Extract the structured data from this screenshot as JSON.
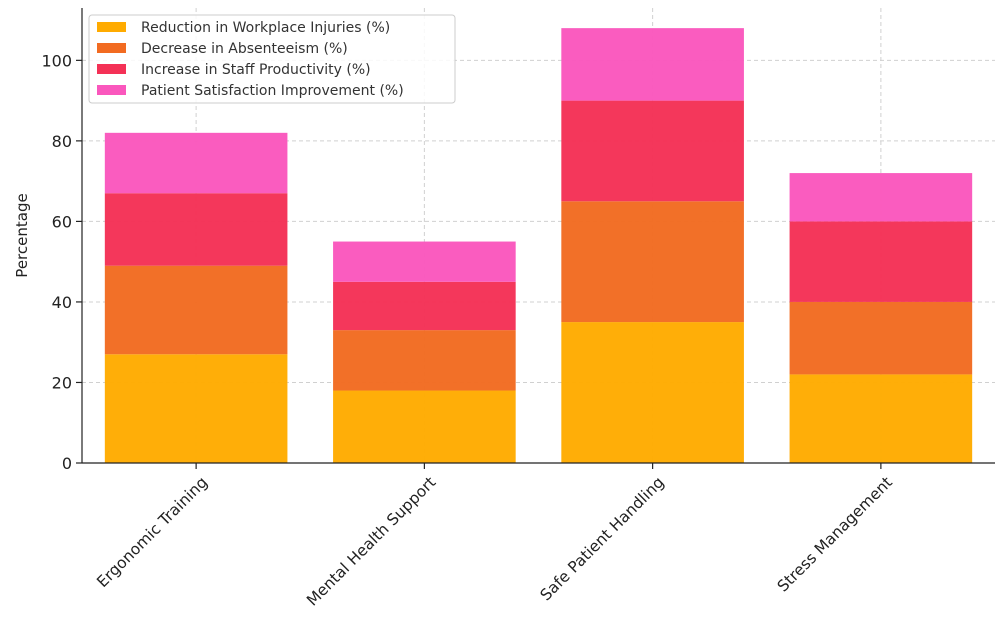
{
  "chart_data": {
    "type": "bar",
    "stacked": true,
    "title": "",
    "xlabel": "",
    "ylabel": "Percentage",
    "ylim": [
      0,
      113
    ],
    "yticks": [
      0,
      20,
      40,
      60,
      80,
      100
    ],
    "grid": true,
    "legend_position": "top-left",
    "categories": [
      "Ergonomic Training",
      "Mental Health Support",
      "Safe Patient Handling",
      "Stress Management"
    ],
    "series": [
      {
        "name": "Reduction in Workplace Injuries (%)",
        "color": "#FFAB00",
        "values": [
          27,
          18,
          35,
          22
        ]
      },
      {
        "name": "Decrease in Absenteeism (%)",
        "color": "#F26B21",
        "values": [
          22,
          15,
          30,
          18
        ]
      },
      {
        "name": "Increase in Staff Productivity (%)",
        "color": "#F43156",
        "values": [
          18,
          12,
          25,
          20
        ]
      },
      {
        "name": "Patient Satisfaction Improvement (%)",
        "color": "#FA57BD",
        "values": [
          15,
          10,
          18,
          12
        ]
      }
    ]
  }
}
